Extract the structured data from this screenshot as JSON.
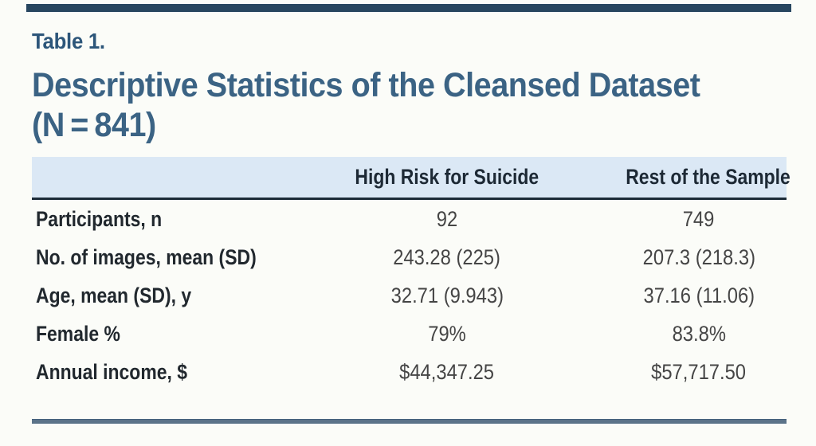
{
  "page": {
    "background_color": "#fbfcf8",
    "top_rule_color": "#27465f",
    "bottom_rule_color": "#5b7389",
    "header_band_color": "#dbe8f5",
    "title_color": "#3b6384"
  },
  "table_number": "Table 1.",
  "title": {
    "line1": "Descriptive Statistics of the Cleansed Dataset",
    "line2": "(N = 841)"
  },
  "table": {
    "columns": [
      "",
      "High Risk for Suicide",
      "Rest of the Sample"
    ],
    "rows": [
      {
        "label": "Participants, n",
        "high_risk": "92",
        "rest": "749"
      },
      {
        "label": "No. of images, mean (SD)",
        "high_risk": "243.28 (225)",
        "rest": "207.3 (218.3)"
      },
      {
        "label": "Age, mean (SD), y",
        "high_risk": "32.71 (9.943)",
        "rest": "37.16 (11.06)"
      },
      {
        "label": "Female %",
        "high_risk": "79%",
        "rest": "83.8%"
      },
      {
        "label": "Annual income, $",
        "high_risk": "$44,347.25",
        "rest": "$57,717.50"
      }
    ]
  }
}
